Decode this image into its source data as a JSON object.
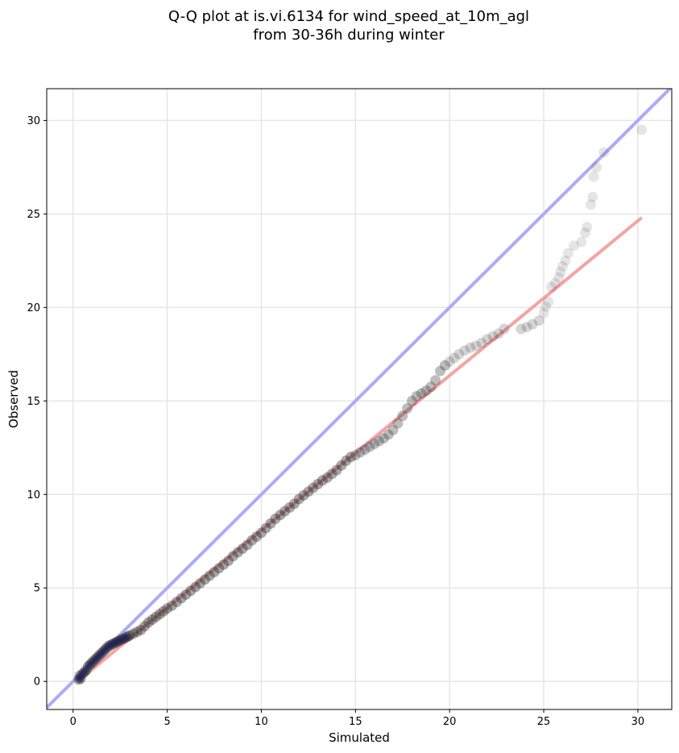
{
  "chart_data": {
    "type": "scatter",
    "title": [
      "Q-Q plot at is.vi.6134 for wind_speed_at_10m_agl",
      "from 30-36h during winter"
    ],
    "xlabel": "Simulated",
    "ylabel": "Observed",
    "xlim": [
      -1.4,
      31.8
    ],
    "ylim": [
      -1.5,
      31.7
    ],
    "xticks": [
      0,
      5,
      10,
      15,
      20,
      25,
      30
    ],
    "yticks": [
      0,
      5,
      10,
      15,
      20,
      25,
      30
    ],
    "grid": true,
    "colors": {
      "points": "#333333",
      "identity_line": "#a9acf5",
      "fit_line": "#f5a3a3",
      "grid": "#e6e6e6"
    },
    "series": [
      {
        "points": [
          [
            0.3,
            0.1
          ],
          [
            0.35,
            0.3
          ],
          [
            0.4,
            0.15
          ],
          [
            0.5,
            0.4
          ],
          [
            0.6,
            0.5
          ],
          [
            0.7,
            0.6
          ],
          [
            0.8,
            0.8
          ],
          [
            0.9,
            0.9
          ],
          [
            1.0,
            1.0
          ],
          [
            1.1,
            1.1
          ],
          [
            1.2,
            1.2
          ],
          [
            1.3,
            1.3
          ],
          [
            1.4,
            1.4
          ],
          [
            1.5,
            1.5
          ],
          [
            1.6,
            1.6
          ],
          [
            1.7,
            1.7
          ],
          [
            1.8,
            1.8
          ],
          [
            1.9,
            1.9
          ],
          [
            2.0,
            1.95
          ],
          [
            2.1,
            2.0
          ],
          [
            2.2,
            2.05
          ],
          [
            2.3,
            2.1
          ],
          [
            2.4,
            2.15
          ],
          [
            2.5,
            2.2
          ],
          [
            2.6,
            2.25
          ],
          [
            2.7,
            2.3
          ],
          [
            2.8,
            2.35
          ],
          [
            2.9,
            2.4
          ],
          [
            3.0,
            2.45
          ],
          [
            3.2,
            2.55
          ],
          [
            3.4,
            2.65
          ],
          [
            3.6,
            2.75
          ],
          [
            3.8,
            2.95
          ],
          [
            4.0,
            3.15
          ],
          [
            4.2,
            3.3
          ],
          [
            4.4,
            3.45
          ],
          [
            4.6,
            3.6
          ],
          [
            4.8,
            3.75
          ],
          [
            5.0,
            3.9
          ],
          [
            5.25,
            4.05
          ],
          [
            5.5,
            4.25
          ],
          [
            5.75,
            4.45
          ],
          [
            6.0,
            4.65
          ],
          [
            6.25,
            4.85
          ],
          [
            6.5,
            5.05
          ],
          [
            6.75,
            5.25
          ],
          [
            7.0,
            5.45
          ],
          [
            7.25,
            5.65
          ],
          [
            7.5,
            5.85
          ],
          [
            7.75,
            6.05
          ],
          [
            8.0,
            6.25
          ],
          [
            8.25,
            6.45
          ],
          [
            8.5,
            6.7
          ],
          [
            8.75,
            6.9
          ],
          [
            9.0,
            7.1
          ],
          [
            9.25,
            7.3
          ],
          [
            9.5,
            7.55
          ],
          [
            9.75,
            7.75
          ],
          [
            10.0,
            7.95
          ],
          [
            10.25,
            8.2
          ],
          [
            10.5,
            8.45
          ],
          [
            10.75,
            8.7
          ],
          [
            11.0,
            8.9
          ],
          [
            11.25,
            9.1
          ],
          [
            11.5,
            9.3
          ],
          [
            11.75,
            9.5
          ],
          [
            12.0,
            9.75
          ],
          [
            12.25,
            9.95
          ],
          [
            12.5,
            10.15
          ],
          [
            12.75,
            10.35
          ],
          [
            13.0,
            10.55
          ],
          [
            13.25,
            10.75
          ],
          [
            13.5,
            10.9
          ],
          [
            13.75,
            11.1
          ],
          [
            14.0,
            11.3
          ],
          [
            14.25,
            11.55
          ],
          [
            14.5,
            11.8
          ],
          [
            14.75,
            12.0
          ],
          [
            15.0,
            12.1
          ],
          [
            15.25,
            12.25
          ],
          [
            15.5,
            12.4
          ],
          [
            15.75,
            12.55
          ],
          [
            16.0,
            12.7
          ],
          [
            16.25,
            12.85
          ],
          [
            16.5,
            13.0
          ],
          [
            16.75,
            13.2
          ],
          [
            17.0,
            13.45
          ],
          [
            17.25,
            13.8
          ],
          [
            17.5,
            14.2
          ],
          [
            17.75,
            14.6
          ],
          [
            18.0,
            15.0
          ],
          [
            18.25,
            15.25
          ],
          [
            18.5,
            15.4
          ],
          [
            18.75,
            15.55
          ],
          [
            19.0,
            15.75
          ],
          [
            19.25,
            16.1
          ],
          [
            19.5,
            16.6
          ],
          [
            19.75,
            16.9
          ],
          [
            20.0,
            17.1
          ],
          [
            20.25,
            17.3
          ],
          [
            20.5,
            17.5
          ],
          [
            20.8,
            17.7
          ],
          [
            21.1,
            17.85
          ],
          [
            21.4,
            17.95
          ],
          [
            21.7,
            18.1
          ],
          [
            22.0,
            18.3
          ],
          [
            22.3,
            18.45
          ],
          [
            22.6,
            18.6
          ],
          [
            22.9,
            18.85
          ],
          [
            23.8,
            18.85
          ],
          [
            24.1,
            18.95
          ],
          [
            24.4,
            19.1
          ],
          [
            24.75,
            19.3
          ],
          [
            25.0,
            19.7
          ],
          [
            25.1,
            20.05
          ],
          [
            25.25,
            20.3
          ],
          [
            25.4,
            21.1
          ],
          [
            25.6,
            21.3
          ],
          [
            25.8,
            21.6
          ],
          [
            25.9,
            21.9
          ],
          [
            26.0,
            22.2
          ],
          [
            26.15,
            22.5
          ],
          [
            26.3,
            22.9
          ],
          [
            26.6,
            23.3
          ],
          [
            27.0,
            23.5
          ],
          [
            27.2,
            24.0
          ],
          [
            27.3,
            24.3
          ],
          [
            27.5,
            25.5
          ],
          [
            27.6,
            25.9
          ],
          [
            27.65,
            27.0
          ],
          [
            27.8,
            27.5
          ],
          [
            28.2,
            28.3
          ],
          [
            30.2,
            29.5
          ]
        ]
      }
    ],
    "lines": [
      {
        "kind": "identity",
        "from": [
          -1.4,
          -1.4
        ],
        "to": [
          31.8,
          31.8
        ]
      },
      {
        "kind": "fit",
        "from": [
          0.3,
          0.05
        ],
        "to": [
          30.2,
          24.8
        ]
      }
    ]
  }
}
